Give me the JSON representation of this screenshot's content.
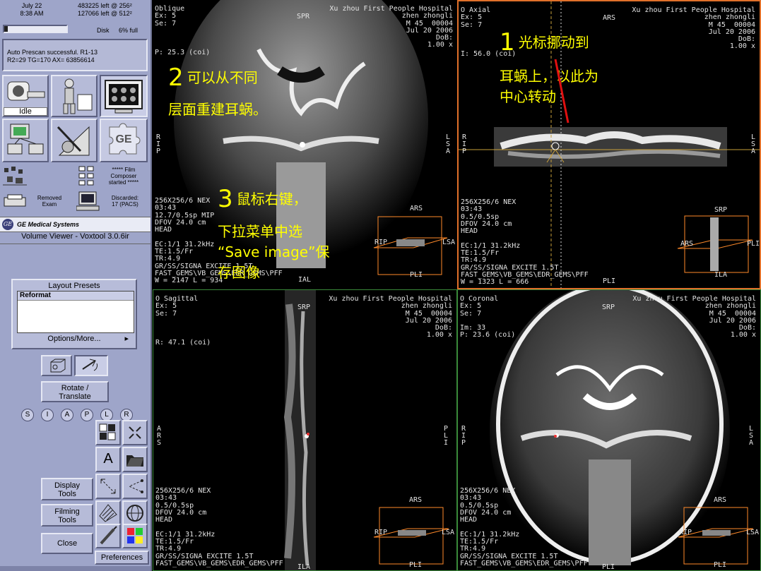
{
  "status": {
    "date": "July 22",
    "time": "8:38 AM",
    "disk_left_256": "483225 left @ 256²",
    "disk_left_512": "127066 left @ 512²",
    "disk_label": "Disk",
    "disk_percent": "6% full",
    "disk_fill_fraction": 0.06,
    "message_line1": "Auto Prescan successful. R1-13",
    "message_line2": "R2=29  TG=170  AX= 63856614"
  },
  "icons": {
    "idle_label": "Idle",
    "film_status": "***** Film\nComposer\nstarted *****",
    "removed_exam": "Removed\nExam",
    "discarded": "Discarded:\n17 (PACS)"
  },
  "brand": {
    "logo": "GE",
    "company": "GE Medical Systems",
    "app_title": "Volume Viewer - Voxtool 3.0.6ir"
  },
  "layout_presets": {
    "title": "Layout Presets",
    "items": [
      "Reformat"
    ],
    "options": "Options/More..."
  },
  "controls": {
    "rotate_translate": "Rotate /\nTranslate",
    "orient_buttons": [
      "S",
      "I",
      "A",
      "P",
      "L",
      "R"
    ],
    "display_tools": "Display\nTools",
    "filming_tools": "Filming\nTools",
    "close": "Close",
    "preferences": "Preferences",
    "text_tool": "A"
  },
  "viewports": {
    "oblique": {
      "tl": "Oblique\nEx: 5\nSe: 7\n\n\n\nP: 25.3 (coi)",
      "tr": "Xu zhou First People Hospital\nzhen zhongli\nM 45  00004\nJul 20 2006\nDoB:\n1.00 x",
      "top_label": "SPR",
      "bl": "256X256/6 NEX\n03:43\n12.7/0.5sp MIP\nDFOV 24.0 cm\nHEAD\n\nEC:1/1 31.2kHz\nTE:1.5/Fr\nTR:4.9\nGR/SS/SIGNA EXCITE 1.5T\nFAST_GEMS\\VB_GEMS\\EDR_GEMS\\PFF\nW = 2147 L = 934",
      "left_label": "R\nI\nP",
      "right_label": "L\nS\nA",
      "bottom_label": "IAL",
      "cube": {
        "top": "ARS",
        "left": "RIP",
        "right": "LSA",
        "bottom": "PLI"
      }
    },
    "axial": {
      "tl": "O Axial\nEx: 5\nSe: 7\n\n\n\nI: 56.0 (coi)",
      "tr": "Xu zhou First People Hospital\nzhen zhongli\nM 45  00004\nJul 20 2006\nDoB:\n1.00 x",
      "top_label": "ARS",
      "bl": "256X256/6 NEX\n03:43\n0.5/0.5sp\nDFOV 24.0 cm\nHEAD\n\nEC:1/1 31.2kHz\nTE:1.5/Fr\nTR:4.9\nGR/SS/SIGNA EXCITE 1.5T\nFAST_GEMS\\VB_GEMS\\EDR_GEMS\\PFF\nW = 1323 L = 666",
      "left_label": "R\nI\nP",
      "right_label": "L\nS\nA",
      "bottom_label": "PLI",
      "cube": {
        "top": "SRP",
        "left": "ARS",
        "right": "PLI",
        "bottom": "ILA"
      }
    },
    "sagittal": {
      "tl": "O Sagittal\nEx: 5\nSe: 7\n\n\n\nR: 47.1 (coi)",
      "tr": "Xu zhou First People Hospital\nzhen zhongli\nM 45  00004\nJul 20 2006\nDoB:\n1.00 x",
      "top_label": "SRP",
      "bl": "256X256/6 NEX\n03:43\n0.5/0.5sp\nDFOV 24.0 cm\nHEAD\n\nEC:1/1 31.2kHz\nTE:1.5/Fr\nTR:4.9\nGR/SS/SIGNA EXCITE 1.5T\nFAST_GEMS\\VB_GEMS\\EDR_GEMS\\PFF",
      "left_label": "A\nR\nS",
      "right_label": "P\nL\nI",
      "bottom_label": "ILA",
      "cube": {
        "top": "ARS",
        "left": "RIP",
        "right": "LSA",
        "bottom": "PLI"
      }
    },
    "coronal": {
      "tl": "O Coronal\nEx: 5\nSe: 7\n\nIm: 33\nP: 23.6 (coi)",
      "tr": "Xu zhou First People Hospital\nzhen zhongli\nM 45  00004\nJul 20 2006\nDoB:\n1.00 x",
      "top_label": "SRP",
      "bl": "256X256/6 NEX\n03:43\n0.5/0.5sp\nDFOV 24.0 cm\nHEAD\n\nEC:1/1 31.2kHz\nTE:1.5/Fr\nTR:4.9\nGR/SS/SIGNA EXCITE 1.5T\nFAST_GEMS\\VB_GEMS\\EDR_GEMS\\PFF",
      "left_label": "R\nI\nP",
      "right_label": "L\nS\nA",
      "bottom_label": "PLI",
      "cube": {
        "top": "ARS",
        "left": "RIP",
        "right": "LSA",
        "bottom": "PLI"
      }
    }
  },
  "annotations": {
    "a1_num": "1",
    "a1_text": "光标挪动到",
    "a1_text2": "耳蜗上，以此为",
    "a1_text3": "中心转动",
    "a2_num": "2",
    "a2_text": "可以从不同",
    "a2_text2": "层面重建耳蜗。",
    "a3_num": "3",
    "a3_text": "鼠标右键，",
    "a3_text2": "下拉菜单中选",
    "a3_text3": "“Save image”保",
    "a3_text4": "存图像"
  },
  "colors": {
    "panel_bg": "#9ea5c9",
    "active_border": "#e0702a",
    "frame_green": "#3a8a3a",
    "annotation": "#ffff00",
    "overlay_orange": "#ff8a2a"
  }
}
